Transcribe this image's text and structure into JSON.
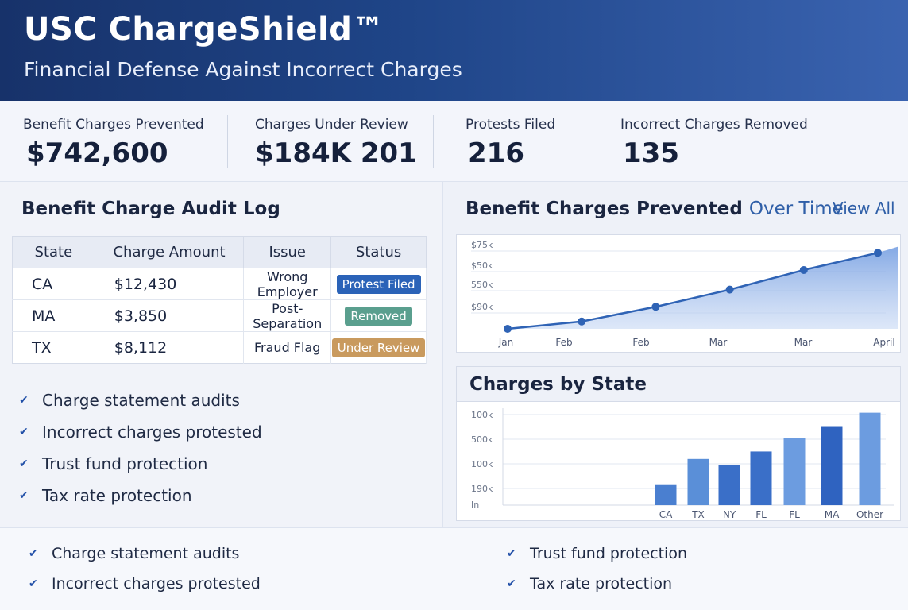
{
  "header": {
    "title": "USC ChargeShield™",
    "subtitle": "Financial Defense Against Incorrect  Charges"
  },
  "kpis": [
    {
      "label": "Benefit Charges Prevented",
      "value": "$742,600"
    },
    {
      "label": "Charges Under Review",
      "value": "$184K 201"
    },
    {
      "label": "Protests Filed",
      "value": "216"
    },
    {
      "label": "Incorrect Charges Removed",
      "value": "135"
    }
  ],
  "audit_log": {
    "title": "Benefit Charge Audit Log",
    "columns": [
      "State",
      "Charge Amount",
      "Issue",
      "Status"
    ],
    "rows": [
      {
        "state": "CA",
        "amount": "$12,430",
        "issue": "Wrong Employer",
        "status": "Protest Filed",
        "status_color": "#2b63b8"
      },
      {
        "state": "MA",
        "amount": "$3,850",
        "issue": "Post-Separation",
        "status": "Removed",
        "status_color": "#5a9f8e"
      },
      {
        "state": "TX",
        "amount": "$8,112",
        "issue": "Fraud Flag",
        "status": "Under Review",
        "status_color": "#c99a5e"
      }
    ]
  },
  "checklist": [
    "Charge statement audits",
    "Incorrect charges protested",
    "Trust fund protection",
    "Tax rate protection"
  ],
  "line_section": {
    "title_main": "Benefit Charges Prevented",
    "title_accent": "Over Time",
    "view_all": "View All"
  },
  "bar_section": {
    "title": "Charges by State"
  },
  "chart_data": [
    {
      "type": "line",
      "title": "Benefit Charges Prevented Over Time",
      "x": [
        "Jan",
        "Feb",
        "Feb",
        "Mar",
        "Mar",
        "April"
      ],
      "y_tick_labels": [
        "$75k",
        "$50k",
        "550k",
        "$90k"
      ],
      "series": [
        {
          "values": [
            0,
            6,
            18,
            32,
            48,
            62
          ]
        }
      ],
      "ylim": [
        0,
        70
      ],
      "grid": true,
      "color": "#2f63b5"
    },
    {
      "type": "bar",
      "title": "Charges by State",
      "categories": [
        "CA",
        "TX",
        "NY",
        "FL",
        "FL",
        "MA",
        "Other"
      ],
      "values": [
        14,
        31,
        27,
        36,
        45,
        53,
        62
      ],
      "y_tick_labels": [
        "100k",
        "500k",
        "100k",
        "190k",
        "In"
      ],
      "ylim": [
        0,
        65
      ],
      "grid": true,
      "colors": [
        "#4a7fd0",
        "#5a8fd8",
        "#3a6fc8",
        "#3a6fc8",
        "#6c9ce0",
        "#2f63c0",
        "#6c9ce0"
      ]
    }
  ],
  "footer": {
    "left": [
      "Charge statement audits",
      "Incorrect charges protested"
    ],
    "right": [
      "Trust fund protection",
      "Tax rate protection"
    ]
  }
}
